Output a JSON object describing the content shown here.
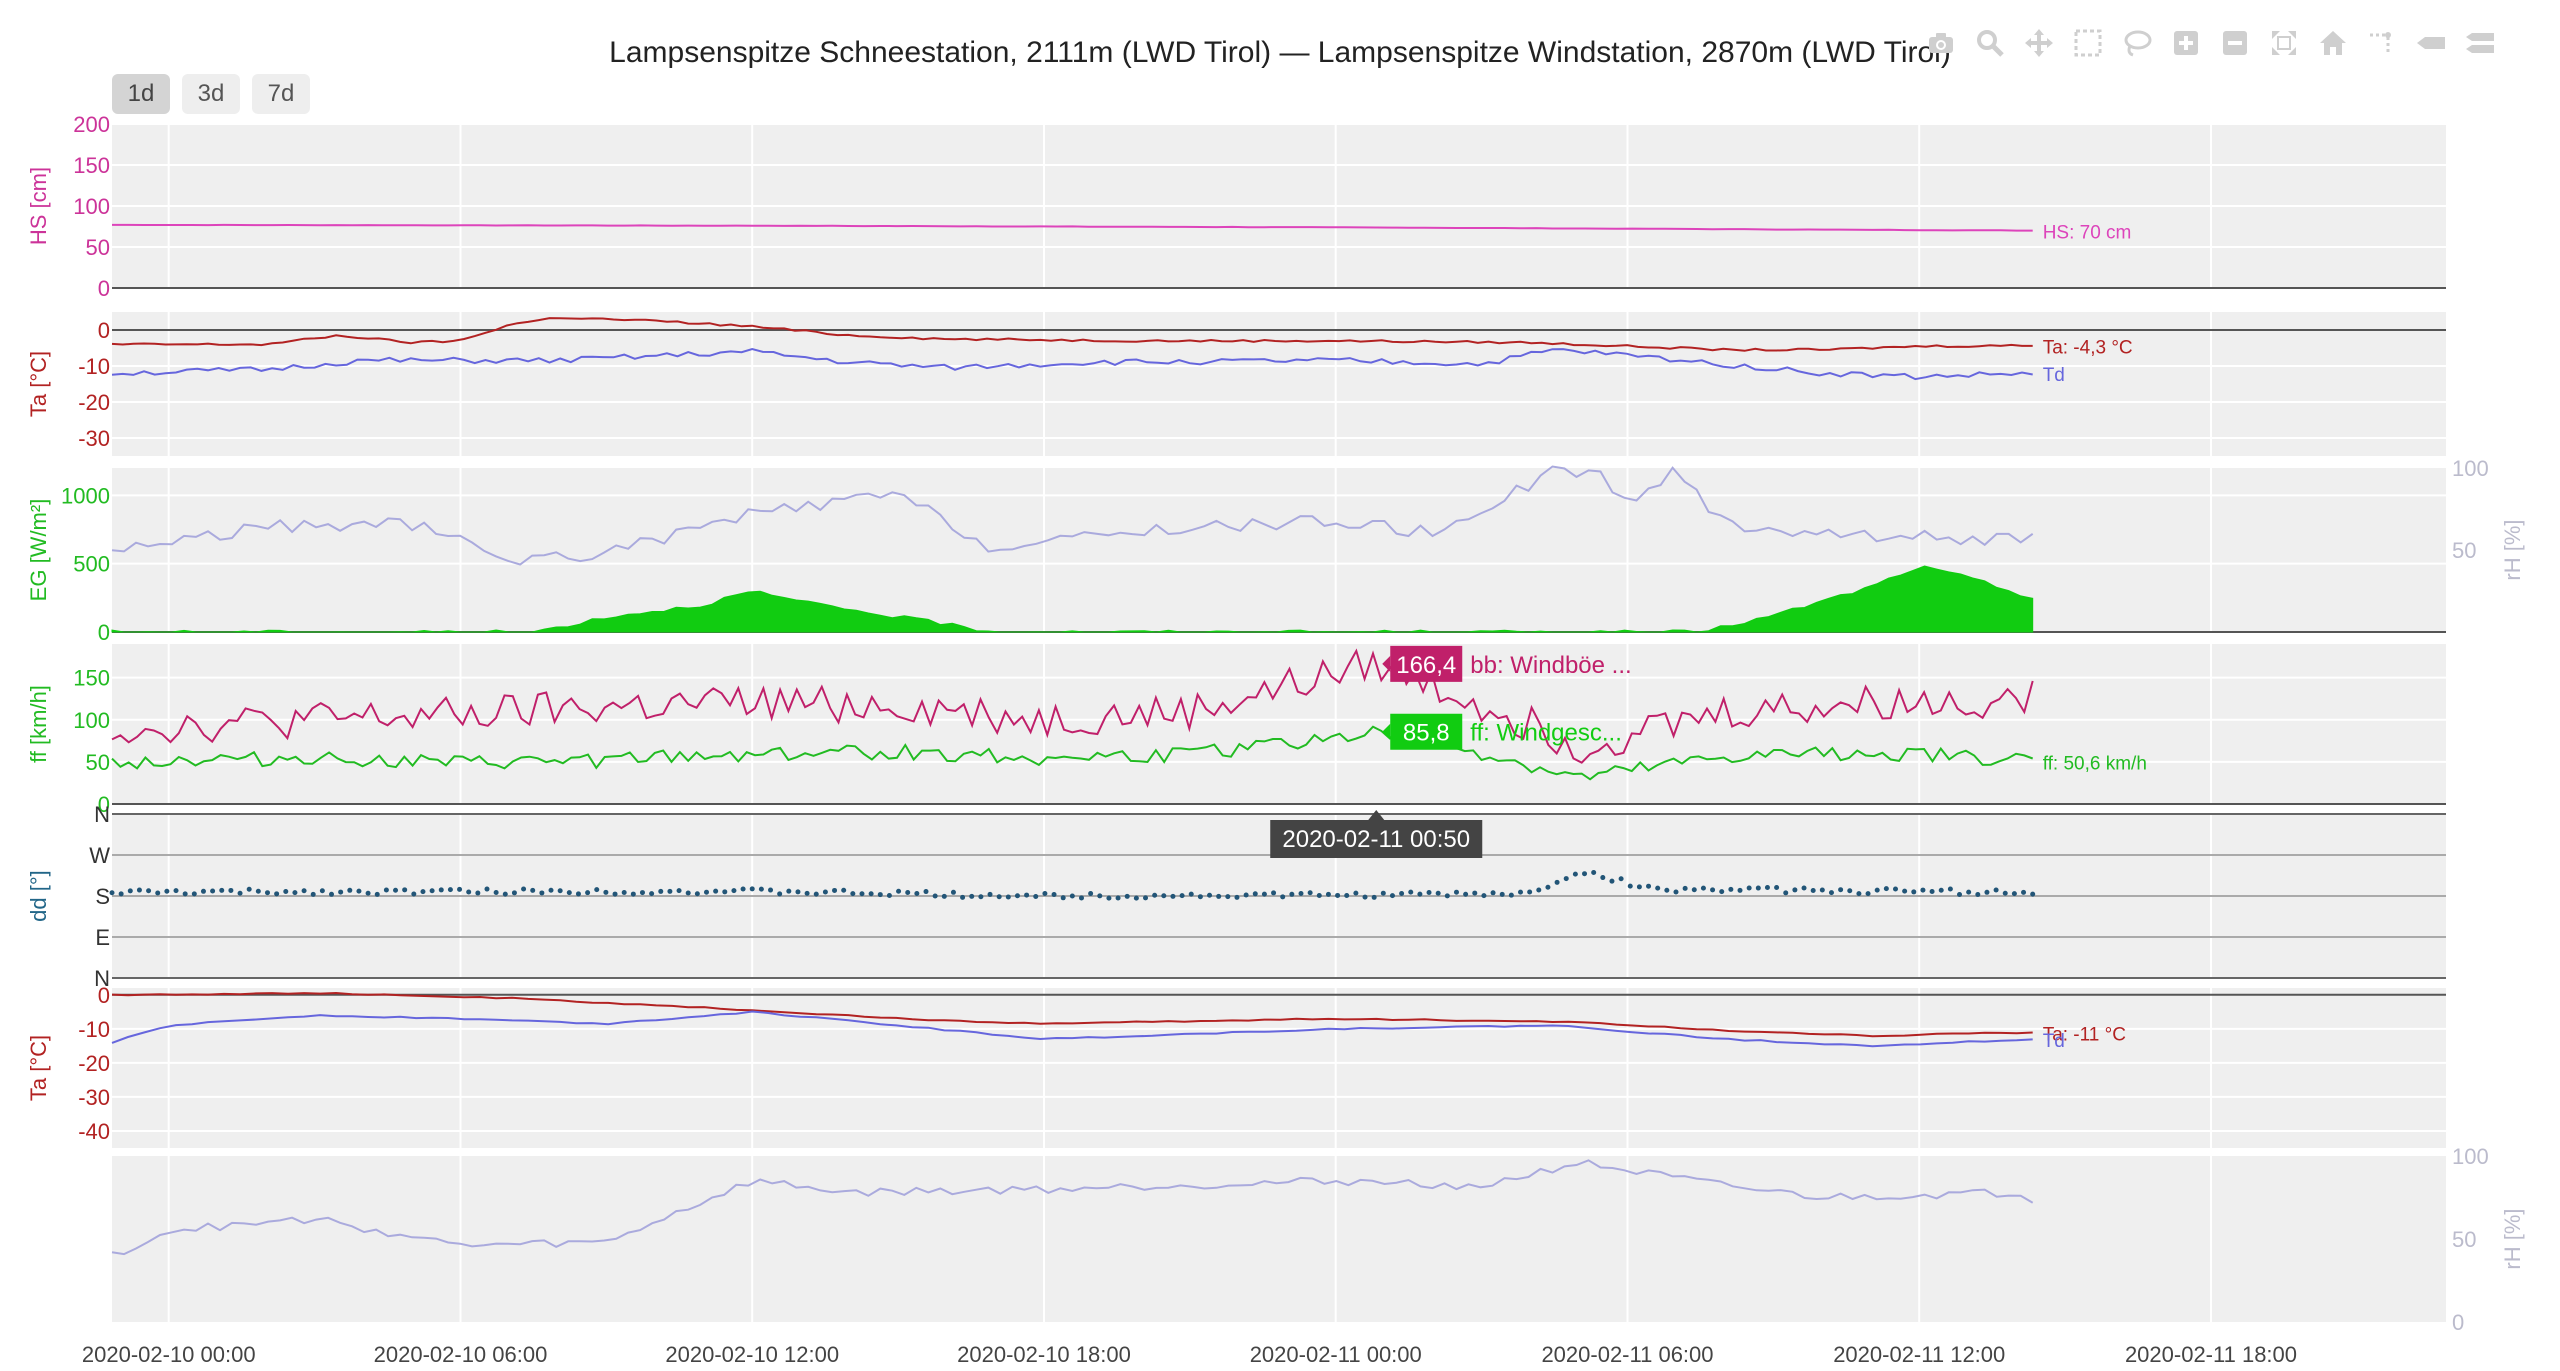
{
  "title": "Lampsenspitze Schneestation, 2111m (LWD Tirol) — Lampsenspitze Windstation, 2870m (LWD Tirol)",
  "range_buttons": [
    "1d",
    "3d",
    "7d"
  ],
  "active_range": "1d",
  "modebar": [
    "camera-icon",
    "zoom-icon",
    "pan-icon",
    "box-select-icon",
    "lasso-icon",
    "zoom-in-icon",
    "zoom-out-icon",
    "autoscale-icon",
    "home-icon",
    "spike-lines-icon",
    "compare-hover-icon",
    "closest-hover-icon"
  ],
  "chart_data": {
    "type": "line",
    "x_ticks": [
      "2020-02-10 00:00",
      "2020-02-10 06:00",
      "2020-02-10 12:00",
      "2020-02-10 18:00",
      "2020-02-11 00:00",
      "2020-02-11 06:00",
      "2020-02-11 12:00",
      "2020-02-11 18:00"
    ],
    "x_range": [
      "2020-02-09 22:50",
      "2020-02-11 22:50"
    ],
    "grid": true,
    "panels": [
      {
        "id": "hs",
        "ylabel": "HS [cm]",
        "ylabel_color": "#cc3399",
        "tick_color": "#cc3399",
        "ylim": [
          0,
          200
        ],
        "yticks": [
          "0",
          "50",
          "100",
          "150",
          "200"
        ],
        "series": [
          {
            "name": "HS",
            "color": "#dd44bb",
            "end_label": "HS: 70 cm",
            "x": [
              "2020-02-09 22:50",
              "2020-02-10 12:00",
              "2020-02-11 00:00",
              "2020-02-11 14:20"
            ],
            "y": [
              77,
              76,
              74,
              70
            ]
          }
        ]
      },
      {
        "id": "ta1",
        "ylabel": "Ta [°C]",
        "ylabel_color": "#b22222",
        "tick_color": "#b22222",
        "ylim": [
          -35,
          5
        ],
        "yticks": [
          "0",
          "-10",
          "-20",
          "-30"
        ],
        "series": [
          {
            "name": "Ta",
            "color": "#b22222",
            "end_label": "Ta: -4,3 °C",
            "x": [
              "2020-02-09 22:50",
              "2020-02-10 02:00",
              "2020-02-10 03:30",
              "2020-02-10 05:00",
              "2020-02-10 06:00",
              "2020-02-10 07:00",
              "2020-02-10 08:00",
              "2020-02-10 10:00",
              "2020-02-10 12:00",
              "2020-02-10 14:00",
              "2020-02-10 16:00",
              "2020-02-10 20:00",
              "2020-02-11 00:00",
              "2020-02-11 04:00",
              "2020-02-11 08:00",
              "2020-02-11 10:00",
              "2020-02-11 12:00",
              "2020-02-11 14:20"
            ],
            "y": [
              -4,
              -4,
              -1.5,
              -3.5,
              -3,
              1.5,
              3.5,
              2.5,
              1,
              -1.5,
              -2.5,
              -3,
              -3,
              -3.5,
              -5.5,
              -5.5,
              -4.5,
              -4.3
            ]
          },
          {
            "name": "Td",
            "color": "#6666dd",
            "end_label": "Td",
            "x": [
              "2020-02-09 22:50",
              "2020-02-10 02:00",
              "2020-02-10 04:00",
              "2020-02-10 08:00",
              "2020-02-10 12:00",
              "2020-02-10 14:00",
              "2020-02-10 16:00",
              "2020-02-10 19:00",
              "2020-02-11 00:00",
              "2020-02-11 03:00",
              "2020-02-11 04:30",
              "2020-02-11 06:00",
              "2020-02-11 08:00",
              "2020-02-11 10:00",
              "2020-02-11 12:00",
              "2020-02-11 14:20"
            ],
            "y": [
              -12,
              -11,
              -8.5,
              -8.5,
              -6,
              -9,
              -10.5,
              -9,
              -8.5,
              -9.5,
              -5.5,
              -7,
              -9.5,
              -12,
              -13,
              -12
            ]
          }
        ]
      },
      {
        "id": "eg",
        "ylabel": "EG [W/m²]",
        "ylabel_color": "#22bb22",
        "tick_color": "#22bb22",
        "ylim": [
          0,
          1200
        ],
        "yticks": [
          "0",
          "500",
          "1000"
        ],
        "y2label": "rH [%]",
        "y2lim": [
          0,
          100
        ],
        "y2ticks": [
          "50",
          "100"
        ],
        "y2_color": "#bbbbcc",
        "series": [
          {
            "name": "EG",
            "color": "#11cc11",
            "fill": true,
            "x": [
              "2020-02-09 22:50",
              "2020-02-10 07:30",
              "2020-02-10 09:00",
              "2020-02-10 11:00",
              "2020-02-10 12:00",
              "2020-02-10 13:00",
              "2020-02-10 15:00",
              "2020-02-10 16:00",
              "2020-02-10 17:00",
              "2020-02-11 07:30",
              "2020-02-11 09:00",
              "2020-02-11 11:00",
              "2020-02-11 12:00",
              "2020-02-11 13:00",
              "2020-02-11 14:20"
            ],
            "y": [
              0,
              0,
              110,
              200,
              300,
              220,
              110,
              60,
              0,
              0,
              120,
              330,
              480,
              400,
              250
            ]
          },
          {
            "name": "rH",
            "axis": "y2",
            "color": "#aaaadd",
            "x": [
              "2020-02-09 22:50",
              "2020-02-10 02:00",
              "2020-02-10 05:00",
              "2020-02-10 07:00",
              "2020-02-10 09:00",
              "2020-02-10 12:00",
              "2020-02-10 15:00",
              "2020-02-10 17:00",
              "2020-02-10 20:00",
              "2020-02-11 00:00",
              "2020-02-11 02:00",
              "2020-02-11 04:30",
              "2020-02-11 05:30",
              "2020-02-11 06:00",
              "2020-02-11 07:00",
              "2020-02-11 08:00",
              "2020-02-11 10:00",
              "2020-02-11 14:20"
            ],
            "y": [
              50,
              64,
              66,
              44,
              48,
              72,
              84,
              50,
              62,
              68,
              60,
              98,
              96,
              78,
              98,
              66,
              60,
              56
            ]
          }
        ]
      },
      {
        "id": "ff",
        "ylabel": "ff [km/h]",
        "ylabel_color": "#22bb22",
        "tick_color": "#22bb22",
        "ylim": [
          0,
          190
        ],
        "yticks": [
          "0",
          "50",
          "100",
          "150"
        ],
        "series": [
          {
            "name": "bb",
            "color": "#c0206a",
            "x": [
              "2020-02-09 22:50",
              "2020-02-10 03:00",
              "2020-02-10 06:00",
              "2020-02-10 09:00",
              "2020-02-10 12:00",
              "2020-02-10 15:00",
              "2020-02-10 18:00",
              "2020-02-10 21:00",
              "2020-02-11 00:50",
              "2020-02-11 03:00",
              "2020-02-11 05:00",
              "2020-02-11 08:00",
              "2020-02-11 11:00",
              "2020-02-11 14:20"
            ],
            "y": [
              90,
              100,
              105,
              115,
              120,
              118,
              100,
              110,
              166.4,
              120,
              70,
              110,
              120,
              125
            ]
          },
          {
            "name": "ff",
            "color": "#22bb22",
            "end_label": "ff: 50,6 km/h",
            "x": [
              "2020-02-09 22:50",
              "2020-02-10 03:00",
              "2020-02-10 06:00",
              "2020-02-10 09:00",
              "2020-02-10 12:00",
              "2020-02-10 15:00",
              "2020-02-10 18:00",
              "2020-02-10 21:00",
              "2020-02-11 00:50",
              "2020-02-11 03:00",
              "2020-02-11 05:00",
              "2020-02-11 08:00",
              "2020-02-11 11:00",
              "2020-02-11 14:20"
            ],
            "y": [
              50,
              55,
              48,
              52,
              60,
              62,
              55,
              58,
              85.8,
              60,
              30,
              55,
              62,
              50.6
            ]
          }
        ]
      },
      {
        "id": "dd",
        "ylabel": "dd [°]",
        "ylabel_color": "#226688",
        "tick_color": "#333333",
        "ylim": [
          0,
          360
        ],
        "ycats": [
          "N",
          "W",
          "S",
          "E",
          "N"
        ],
        "series": [
          {
            "name": "dd",
            "color": "#225577",
            "scatter": true,
            "x": [
              "2020-02-09 22:50",
              "2020-02-10 06:00",
              "2020-02-10 12:00",
              "2020-02-10 18:00",
              "2020-02-11 00:00",
              "2020-02-11 04:00",
              "2020-02-11 05:00",
              "2020-02-11 06:30",
              "2020-02-11 14:20"
            ],
            "y": [
              188,
              190,
              190,
              180,
              182,
              185,
              235,
              195,
              188
            ]
          }
        ]
      },
      {
        "id": "ta2",
        "ylabel": "Ta [°C]",
        "ylabel_color": "#b22222",
        "tick_color": "#b22222",
        "ylim": [
          -45,
          2
        ],
        "yticks": [
          "0",
          "-10",
          "-20",
          "-30",
          "-40"
        ],
        "series": [
          {
            "name": "Ta",
            "color": "#b22222",
            "end_label": "Ta: -11 °C",
            "x": [
              "2020-02-09 22:50",
              "2020-02-10 03:00",
              "2020-02-10 07:00",
              "2020-02-10 12:00",
              "2020-02-10 15:00",
              "2020-02-10 18:00",
              "2020-02-11 00:00",
              "2020-02-11 05:00",
              "2020-02-11 08:00",
              "2020-02-11 11:00",
              "2020-02-11 14:20"
            ],
            "y": [
              0,
              0.5,
              -1,
              -4.5,
              -7,
              -8.5,
              -7,
              -8,
              -10.5,
              -12,
              -11
            ]
          },
          {
            "name": "Td",
            "color": "#6666dd",
            "end_label": "Td",
            "x": [
              "2020-02-09 22:50",
              "2020-02-10 00:00",
              "2020-02-10 03:00",
              "2020-02-10 06:00",
              "2020-02-10 09:00",
              "2020-02-10 12:00",
              "2020-02-10 15:00",
              "2020-02-10 18:00",
              "2020-02-11 00:00",
              "2020-02-11 04:30",
              "2020-02-11 08:00",
              "2020-02-11 11:00",
              "2020-02-11 14:20"
            ],
            "y": [
              -14,
              -9,
              -6,
              -7,
              -8.5,
              -5,
              -9,
              -13,
              -10,
              -9,
              -13,
              -15,
              -13
            ]
          }
        ]
      },
      {
        "id": "rh2",
        "ylabel": "",
        "ylim": [
          0,
          100
        ],
        "yticks": [],
        "y2label": "rH [%]",
        "y2lim": [
          0,
          100
        ],
        "y2ticks": [
          "0",
          "50",
          "100"
        ],
        "y2_color": "#bbbbcc",
        "series": [
          {
            "name": "rH",
            "axis": "y2",
            "color": "#aaaadd",
            "x": [
              "2020-02-09 22:50",
              "2020-02-10 00:00",
              "2020-02-10 03:00",
              "2020-02-10 06:00",
              "2020-02-10 09:00",
              "2020-02-10 12:00",
              "2020-02-10 14:00",
              "2020-02-10 18:00",
              "2020-02-11 00:00",
              "2020-02-11 03:00",
              "2020-02-11 05:00",
              "2020-02-11 08:00",
              "2020-02-11 10:00",
              "2020-02-11 14:00",
              "2020-02-11 14:20"
            ],
            "y": [
              40,
              55,
              62,
              46,
              48,
              85,
              78,
              80,
              85,
              82,
              96,
              82,
              75,
              78,
              74
            ]
          }
        ]
      }
    ],
    "hover": {
      "x_label": "2020-02-11 00:50",
      "items": [
        {
          "value": "166,4",
          "text": "bb: Windböe ...",
          "color": "#c0206a"
        },
        {
          "value": "85,8",
          "text": "ff: Windgesc...",
          "color": "#11cc11"
        }
      ]
    }
  }
}
